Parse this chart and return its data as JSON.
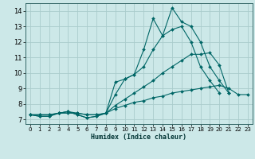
{
  "xlabel": "Humidex (Indice chaleur)",
  "ylabel": "",
  "background_color": "#cce8e8",
  "grid_color": "#aacccc",
  "line_color": "#006666",
  "xlim": [
    -0.5,
    23.5
  ],
  "ylim": [
    6.7,
    14.5
  ],
  "xticks": [
    0,
    1,
    2,
    3,
    4,
    5,
    6,
    7,
    8,
    9,
    10,
    11,
    12,
    13,
    14,
    15,
    16,
    17,
    18,
    19,
    20,
    21,
    22,
    23
  ],
  "yticks": [
    7,
    8,
    9,
    10,
    11,
    12,
    13,
    14
  ],
  "series": [
    [
      7.3,
      7.2,
      7.2,
      7.4,
      7.5,
      7.3,
      7.1,
      7.2,
      7.4,
      8.6,
      9.6,
      9.9,
      11.5,
      13.5,
      12.4,
      14.2,
      13.3,
      13.0,
      12.0,
      10.4,
      9.5,
      8.7,
      null,
      null
    ],
    [
      7.3,
      7.2,
      7.2,
      7.4,
      7.5,
      7.3,
      7.1,
      7.2,
      7.4,
      9.4,
      9.6,
      9.9,
      10.4,
      11.5,
      12.4,
      12.8,
      13.0,
      12.0,
      10.4,
      9.5,
      8.7,
      null,
      null,
      null
    ],
    [
      7.3,
      7.3,
      7.3,
      7.4,
      7.5,
      7.4,
      7.3,
      7.3,
      7.4,
      7.9,
      8.3,
      8.7,
      9.1,
      9.5,
      10.0,
      10.4,
      10.8,
      11.2,
      11.2,
      11.3,
      10.5,
      8.7,
      null,
      null
    ],
    [
      7.3,
      7.3,
      7.3,
      7.4,
      7.4,
      7.4,
      7.3,
      7.3,
      7.4,
      7.7,
      7.9,
      8.1,
      8.2,
      8.4,
      8.5,
      8.7,
      8.8,
      8.9,
      9.0,
      9.1,
      9.2,
      9.0,
      8.6,
      8.6
    ]
  ]
}
